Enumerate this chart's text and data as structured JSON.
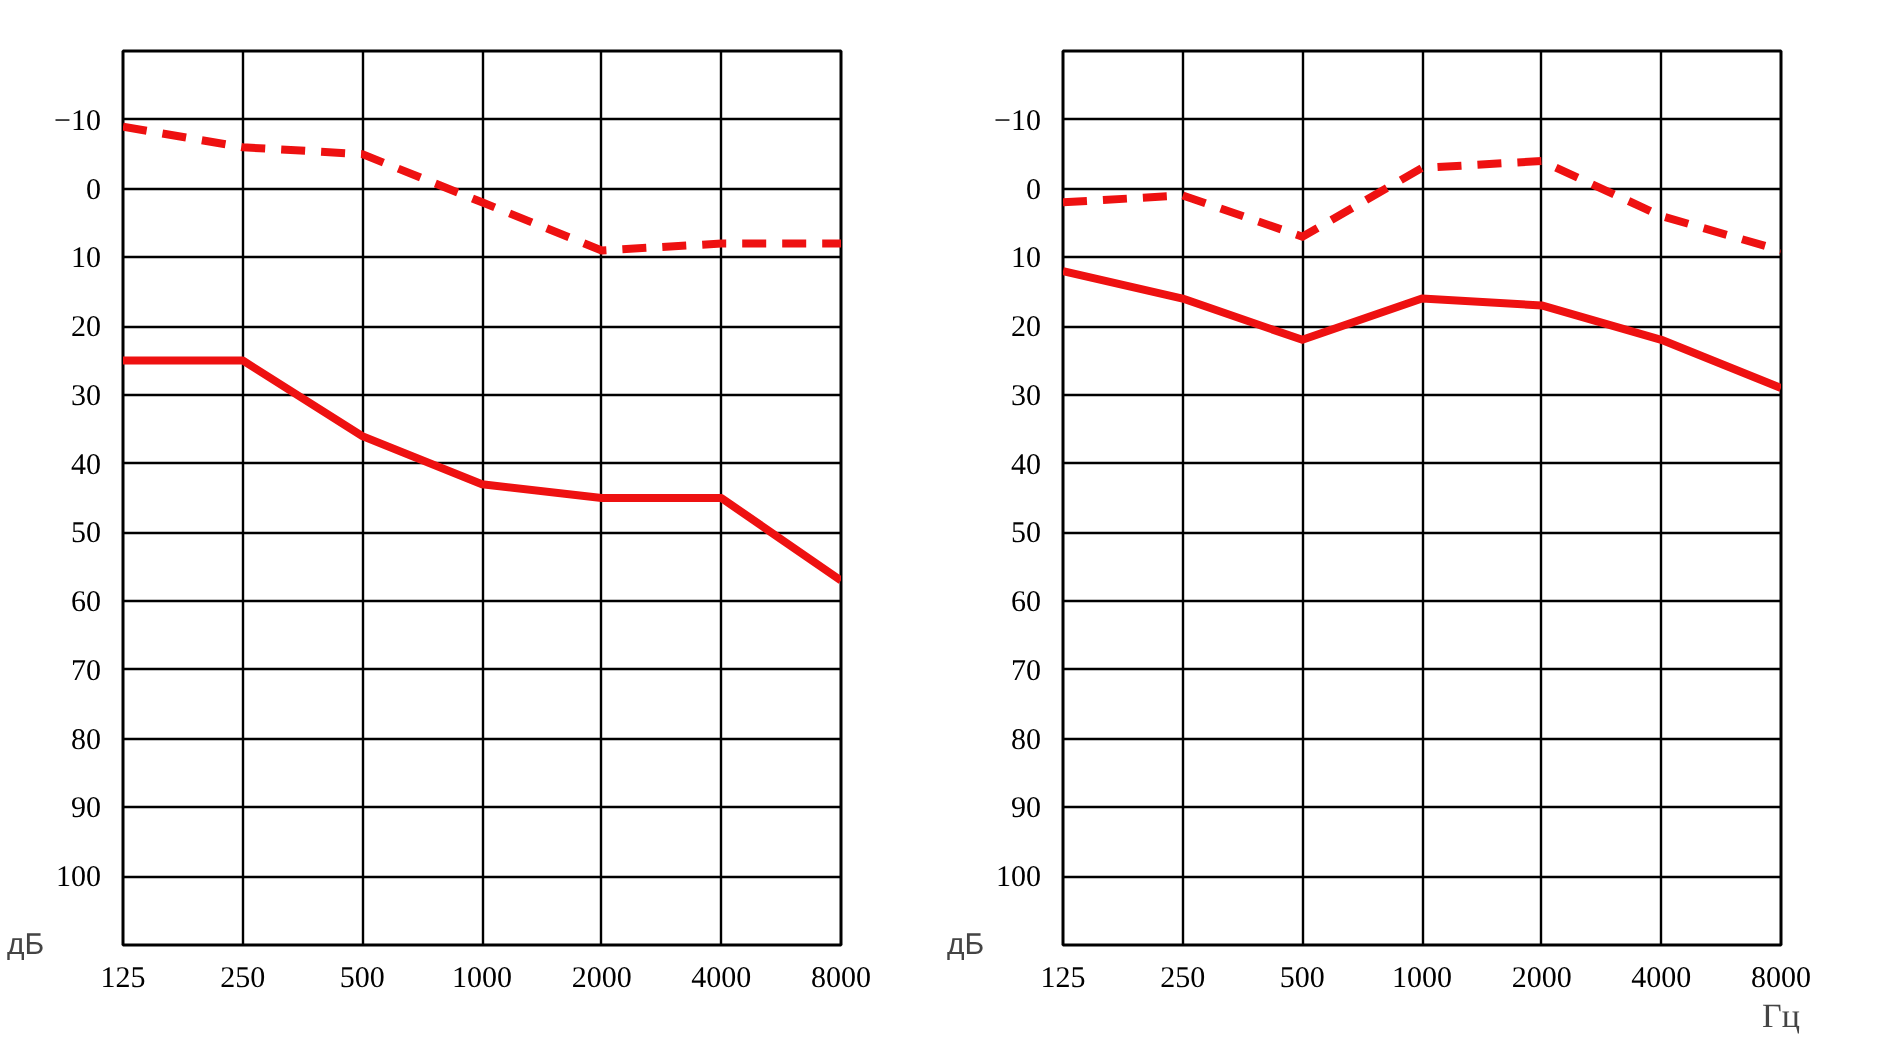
{
  "chart_data": [
    {
      "type": "line",
      "ylabel": "дБ",
      "categories": [
        "125",
        "250",
        "500",
        "1000",
        "2000",
        "4000",
        "8000"
      ],
      "ylim": [
        110,
        -20
      ],
      "yticks": [
        -10,
        0,
        10,
        20,
        30,
        40,
        50,
        60,
        70,
        80,
        90,
        100
      ],
      "grid": true,
      "marker": "none",
      "series": [
        {
          "color": "#ee1111",
          "line_style": "dashed",
          "values": [
            -9,
            -6,
            -5,
            2,
            9,
            8,
            8
          ]
        },
        {
          "color": "#ee1111",
          "line_style": "solid",
          "values": [
            25,
            25,
            36,
            43,
            45,
            45,
            57
          ]
        }
      ]
    },
    {
      "type": "line",
      "ylabel": "дБ",
      "xlabel": "Гц",
      "categories": [
        "125",
        "250",
        "500",
        "1000",
        "2000",
        "4000",
        "8000"
      ],
      "ylim": [
        110,
        -20
      ],
      "yticks": [
        -10,
        0,
        10,
        20,
        30,
        40,
        50,
        60,
        70,
        80,
        90,
        100
      ],
      "grid": true,
      "marker": "none",
      "series": [
        {
          "color": "#ee1111",
          "line_style": "dashed",
          "values": [
            2,
            1,
            7,
            -3,
            -4,
            4,
            9
          ]
        },
        {
          "color": "#ee1111",
          "line_style": "solid",
          "values": [
            12,
            16,
            22,
            16,
            17,
            22,
            29
          ]
        }
      ]
    }
  ]
}
